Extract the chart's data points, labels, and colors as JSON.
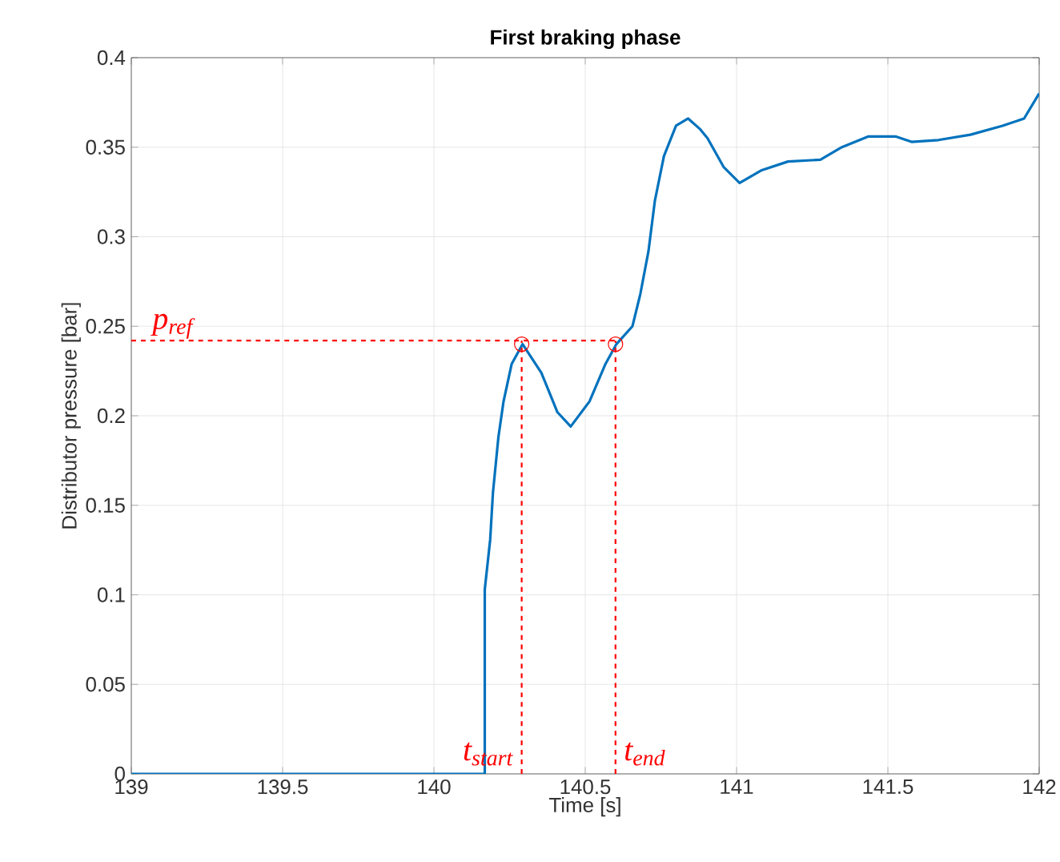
{
  "chart_data": {
    "type": "line",
    "title": "First braking phase",
    "xlabel": "Time [s]",
    "ylabel": "Distributor pressure [bar]",
    "xlim": [
      139,
      142
    ],
    "ylim": [
      0,
      0.4
    ],
    "xticks": [
      139,
      139.5,
      140,
      140.5,
      141,
      141.5,
      142
    ],
    "yticks": [
      0,
      0.05,
      0.1,
      0.15,
      0.2,
      0.25,
      0.3,
      0.35,
      0.4
    ],
    "grid": true,
    "line_style": "solid",
    "series": [
      {
        "color": "#0072bd",
        "x": [
          139,
          140.168,
          140.168,
          140.186,
          140.195,
          140.213,
          140.23,
          140.257,
          140.293,
          140.355,
          140.408,
          140.452,
          140.514,
          140.567,
          140.603,
          140.656,
          140.682,
          140.709,
          140.73,
          140.76,
          140.8,
          140.84,
          140.88,
          140.904,
          140.957,
          141.01,
          141.081,
          141.17,
          141.277,
          141.348,
          141.436,
          141.525,
          141.578,
          141.667,
          141.773,
          141.879,
          141.95,
          142
        ],
        "values": [
          0,
          0,
          0.103,
          0.131,
          0.157,
          0.188,
          0.208,
          0.229,
          0.24,
          0.224,
          0.202,
          0.194,
          0.208,
          0.229,
          0.24,
          0.25,
          0.268,
          0.292,
          0.32,
          0.345,
          0.362,
          0.366,
          0.36,
          0.355,
          0.339,
          0.33,
          0.337,
          0.342,
          0.343,
          0.35,
          0.356,
          0.356,
          0.353,
          0.354,
          0.357,
          0.362,
          0.366,
          0.38
        ]
      },
      {
        "type": "scatter",
        "color": "#ff0000",
        "marker": "circle",
        "x": [
          140.29,
          140.6
        ],
        "values": [
          0.24,
          0.24
        ]
      }
    ],
    "ref_lines": [
      {
        "axis": "y",
        "value": 0.242,
        "label": "p$_{ref}$",
        "color": "#ff0000",
        "line_style": "dashed"
      },
      {
        "axis": "x",
        "value": 140.29,
        "label": "t$_{start}$",
        "color": "#ff0000",
        "line_style": "dashed"
      },
      {
        "axis": "x",
        "value": 140.6,
        "label": "t$_{end}$",
        "color": "#ff0000",
        "line_style": "dashed"
      }
    ]
  }
}
